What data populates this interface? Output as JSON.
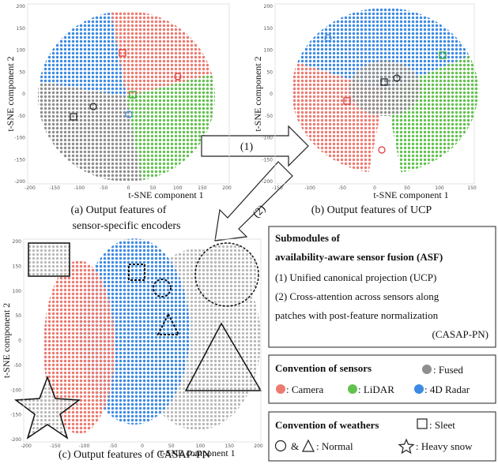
{
  "panels": [
    {
      "x_label": "t-SNE component 1",
      "y_label": "t-SNE component 2",
      "xticks": [
        -200,
        -150,
        -100,
        -50,
        0,
        50,
        100,
        150,
        200
      ],
      "yticks": [
        200,
        150,
        100,
        50,
        0,
        -50,
        -100,
        -150,
        -200
      ],
      "caption": [
        "(a) Output features of",
        "sensor-specific encoders"
      ]
    },
    {
      "x_label": "t-SNE component 1",
      "y_label": "t-SNE component 2",
      "xticks": [
        -150,
        -100,
        -50,
        0,
        50,
        100,
        150
      ],
      "yticks": [
        200,
        150,
        100,
        50,
        0,
        -50,
        -100,
        -150,
        -200
      ],
      "caption": [
        "(b) Output features of UCP"
      ]
    },
    {
      "x_label": "t-SNE component 1",
      "y_label": "t-SNE component 2",
      "xticks": [
        -200,
        -150,
        -100,
        -50,
        0,
        50,
        100,
        150,
        200
      ],
      "yticks": [
        200,
        150,
        100,
        50,
        0,
        -50,
        -100,
        -150,
        -200
      ],
      "caption": [
        "(c) Output features of CASAP-PN"
      ]
    }
  ],
  "arrows": [
    "(1)",
    "(2)"
  ],
  "asf": {
    "title": [
      "Submodules of",
      "availability-aware sensor fusion (ASF)"
    ],
    "lines": [
      "(1) Unified canonical projection (UCP)",
      "(2) Cross-attention across sensors along",
      "patches with post-feature normalization",
      "(CASAP-PN)"
    ]
  },
  "sensors": {
    "title": "Convention of sensors",
    "fused": ": Fused",
    "camera": ": Camera",
    "lidar": ": LiDAR",
    "radar": ": 4D Radar"
  },
  "weathers": {
    "title": "Convention of weathers",
    "sleet": ": Sleet",
    "and": "&",
    "normal": ": Normal",
    "snow": ": Heavy snow"
  }
}
